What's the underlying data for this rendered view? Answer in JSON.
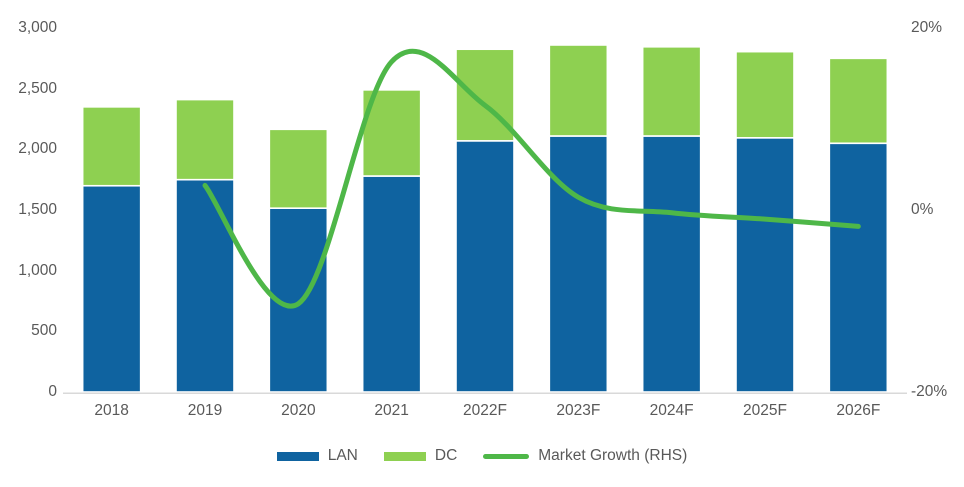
{
  "chart_data": {
    "type": "bar",
    "subtype": "stacked-bars-with-line-overlay",
    "title": "",
    "categories": [
      "2018",
      "2019",
      "2020",
      "2021",
      "2022F",
      "2023F",
      "2024F",
      "2025F",
      "2026F"
    ],
    "series": [
      {
        "name": "LAN",
        "kind": "bar",
        "axis": "left",
        "color": "#0F63A0",
        "values": [
          1700,
          1750,
          1515,
          1780,
          2070,
          2110,
          2110,
          2095,
          2050
        ]
      },
      {
        "name": "DC",
        "kind": "bar",
        "axis": "left",
        "color": "#8ED051",
        "values": [
          650,
          660,
          650,
          710,
          755,
          750,
          735,
          710,
          700
        ]
      },
      {
        "name": "Market Growth (RHS)",
        "kind": "line",
        "axis": "right",
        "color": "#4EB748",
        "values": [
          null,
          2.7,
          -10.3,
          16.3,
          11.5,
          1.4,
          -0.3,
          -1.0,
          -1.8
        ]
      }
    ],
    "stacked_totals": [
      2350,
      2410,
      2165,
      2490,
      2825,
      2860,
      2845,
      2805,
      2750
    ],
    "left_axis": {
      "min": 0,
      "max": 3000,
      "ticks": [
        {
          "label": "0",
          "value": 0
        },
        {
          "label": "500",
          "value": 500
        },
        {
          "label": "1,000",
          "value": 1000
        },
        {
          "label": "1,500",
          "value": 1500
        },
        {
          "label": "2,000",
          "value": 2000
        },
        {
          "label": "2,500",
          "value": 2500
        },
        {
          "label": "3,000",
          "value": 3000
        }
      ]
    },
    "right_axis": {
      "min": -20,
      "max": 20,
      "ticks": [
        {
          "label": "20%",
          "value": 20
        },
        {
          "label": "0%",
          "value": 0
        },
        {
          "label": "-20%",
          "value": -20
        }
      ]
    },
    "grid": false,
    "legend_position": "bottom",
    "line_smoothing": true,
    "colors": {
      "axis_text": "#595959",
      "axis_line": "#D9D9D9",
      "background": "#FFFFFF",
      "bar_separator": "#FFFFFF"
    }
  }
}
